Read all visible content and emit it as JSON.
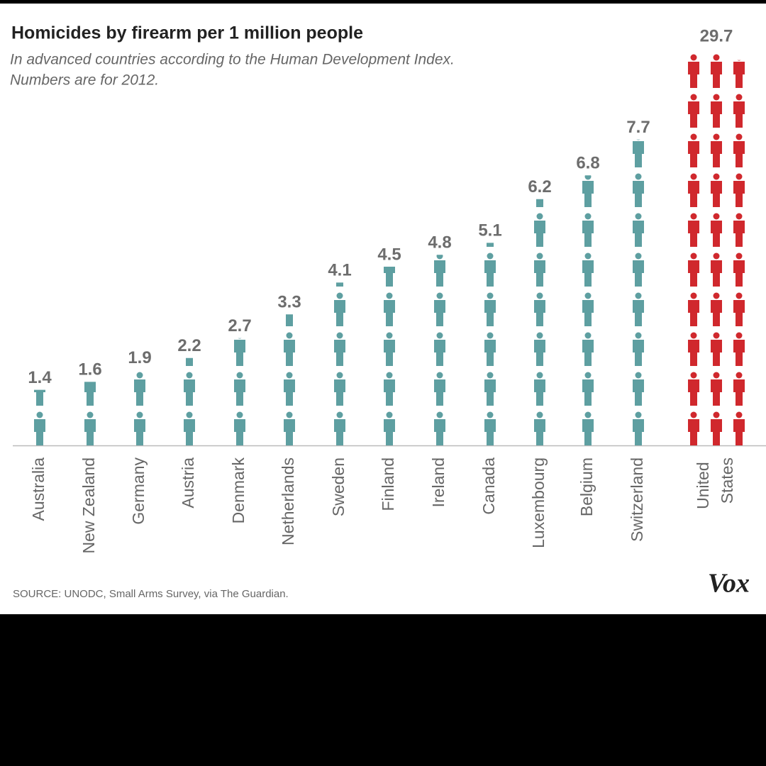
{
  "chart_data": {
    "type": "pictogram",
    "title": "Homicides by firearm per 1 million people",
    "subtitle": [
      "In advanced countries according to the Human Development Index.",
      "Numbers are for 2012."
    ],
    "categories": [
      "Australia",
      "New Zealand",
      "Germany",
      "Austria",
      "Denmark",
      "Netherlands",
      "Sweden",
      "Finland",
      "Ireland",
      "Canada",
      "Luxembourg",
      "Belgium",
      "Switzerland",
      "United States"
    ],
    "values": [
      1.4,
      1.6,
      1.9,
      2.2,
      2.7,
      3.3,
      4.1,
      4.5,
      4.8,
      5.1,
      6.2,
      6.8,
      7.7,
      29.7
    ],
    "colors": [
      "#5e9fa1",
      "#5e9fa1",
      "#5e9fa1",
      "#5e9fa1",
      "#5e9fa1",
      "#5e9fa1",
      "#5e9fa1",
      "#5e9fa1",
      "#5e9fa1",
      "#5e9fa1",
      "#5e9fa1",
      "#5e9fa1",
      "#5e9fa1",
      "#d0282d"
    ],
    "source": "SOURCE: UNODC, Small Arms Survey, via The Guardian.",
    "logo": "Vox"
  }
}
